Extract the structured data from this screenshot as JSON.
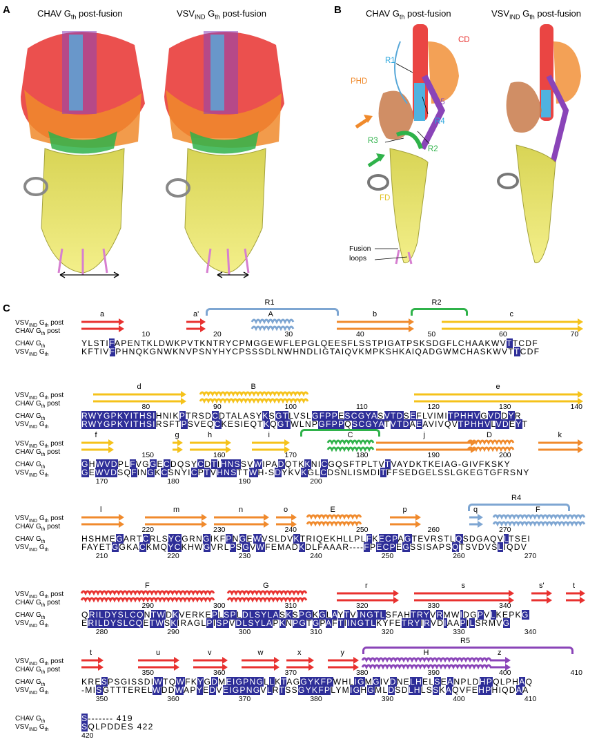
{
  "panels": {
    "A": {
      "letter": "A",
      "title_left": "CHAV G",
      "title_left_sub": "th",
      "title_left_tail": " post-fusion",
      "title_right": "VSV",
      "title_right_sub": "IND",
      "title_right_mid": " G",
      "title_right_sub2": "th",
      "title_right_tail": " post-fusion"
    },
    "B": {
      "letter": "B",
      "title_left": "CHAV G",
      "title_left_sub": "th",
      "title_left_tail": " post-fusion",
      "title_right": "VSV",
      "title_right_sub": "IND",
      "title_right_mid": " G",
      "title_right_sub2": "th",
      "title_right_tail": " post-fusion",
      "labels": {
        "cd": "CD",
        "r1": "R1",
        "phd": "PHD",
        "r5": "R5",
        "r4": "R4",
        "r3": "R3",
        "r2": "R2",
        "fd": "FD",
        "fusion": "Fusion",
        "loops": "loops"
      }
    },
    "C": {
      "letter": "C"
    }
  },
  "colors": {
    "red": "#e8312f",
    "orange": "#f08a2c",
    "yellow": "#f5c21a",
    "green": "#2fb24a",
    "blue": "#7ea6d2",
    "purple": "#8a44b8",
    "navy": "#2e2e98",
    "pink": "#d86ac8"
  },
  "rows": [
    {
      "labels": [
        "VSV",
        "CHAV"
      ],
      "chav": "YLSTIFAPENTKLDWKPVTKNTRYCPMGGEWFLEPGLQEESFLSSTPIGATPSKSDGFLCHAAKWVTTCDF",
      "vsv": "KFTIVFPHNQKGNWKNVPSNYHYCPSSSDLNWHNDLIGTAIQVKMPKSHKAIQADGWMCHASKWVTTCDF",
      "top_nums": [
        "10",
        "20",
        "30",
        "40",
        "50",
        "60",
        "70"
      ],
      "bottom_nums": [],
      "ss": [
        "a",
        "a'",
        "A",
        "b",
        "c"
      ],
      "regions": [
        "R1",
        "R2"
      ]
    },
    {
      "chav": "RWYGPKYITHSIHNIKPTRSDCDTALASYKSGTLVSLGFPPESCGYASVTDSEFLVIMITPHHVGVDDYR",
      "vsv": "RWYGPKYITHSIRSFTPSVEQCKESIEQTKQGTWLNPGFPPQSCGYATVTDAEAVIVQVTPHHVLVDEYT",
      "top_nums": [
        "80",
        "90",
        "100",
        "110",
        "120",
        "130",
        "140"
      ],
      "bottom_nums": [],
      "ss": [
        "d",
        "B",
        "e"
      ],
      "regions": []
    },
    {
      "chav": "GHWVDPLFVGGECDQSYCDTIHNSSVWIPADQTKKNICGQSFTPLTVTVAYDKTKEIAG-GIVFKSKY",
      "vsv": "GEWVDSQFINGKCSNYICPTVHNSTTWH-SDYKVKGLCDSNLISMDITFFSEDGELSSLGKEGTGFRSNY",
      "top_nums": [
        "150",
        "160",
        "170",
        "180",
        "190",
        "200"
      ],
      "bottom_nums": [
        "170",
        "180",
        "190",
        "200"
      ],
      "ss": [
        "f",
        "g",
        "h",
        "i",
        "C",
        "j",
        "D",
        "k"
      ],
      "regions": [
        "R3"
      ]
    },
    {
      "chav": "HSHMEGARTCRLSYCGRNGIKFPNGEWVSLDVKTRIQEKHLLPLFKECPAGTEVRSTLQSDGAQVLTSEI",
      "vsv": "FAYETGGKACKMQYCKHWGVRLPSGVWFEMADKDLFAAAR----FPECPEGSSISAPSQTSVDVSLIQDV",
      "top_nums": [
        "220",
        "230",
        "240",
        "250",
        "260",
        "270"
      ],
      "bottom_nums": [
        "210",
        "220",
        "230",
        "240",
        "250",
        "260",
        "270"
      ],
      "ss": [
        "l",
        "m",
        "n",
        "o",
        "E",
        "p",
        "q",
        "F"
      ],
      "regions": [
        "R4"
      ]
    },
    {
      "chav": "QRILDYSLCQNTWDKVERKEPLSPLDLSYLASKSPGKGLAYTVINGTLSFAHTRYVRMWIDGPVLKEPKG",
      "vsv": "ERILDYSLCQETWSKIRAGLPISPVDLSYLAPKNPGTGPAFTIINGTLKYFETRYIRVDIAAPILSRMVG",
      "top_nums": [
        "290",
        "300",
        "310",
        "320",
        "330",
        "340"
      ],
      "bottom_nums": [
        "280",
        "290",
        "300",
        "310",
        "320",
        "330",
        "340"
      ],
      "ss": [
        "F",
        "G",
        "r",
        "s",
        "s'",
        "t"
      ],
      "regions": []
    },
    {
      "chav": "KRESPSGISSDIWTQWFKYGDMEIGPNGLLKTAGGYKFPWHLIGMGIVDNELHELSEANPLDHPQLPHAQ",
      "vsv": "-MISGTTTERELWDDWAPYEDVEIGPNGVLRTSSGYKFPLYMIGHGMLDSDLHLSSKAQVFEHPHIQDAA",
      "top_nums": [
        "350",
        "360",
        "370",
        "380",
        "390",
        "400",
        "410"
      ],
      "bottom_nums": [
        "350",
        "360",
        "370",
        "380",
        "390",
        "400",
        "410"
      ],
      "ss": [
        "t",
        "u",
        "v",
        "w",
        "x",
        "y",
        "H",
        "z"
      ],
      "regions": [
        "R5"
      ]
    },
    {
      "chav": "S------- 419",
      "vsv": "SQLPDDES 422",
      "top_nums": [],
      "bottom_nums": [
        "420"
      ],
      "ss": [],
      "regions": []
    }
  ]
}
